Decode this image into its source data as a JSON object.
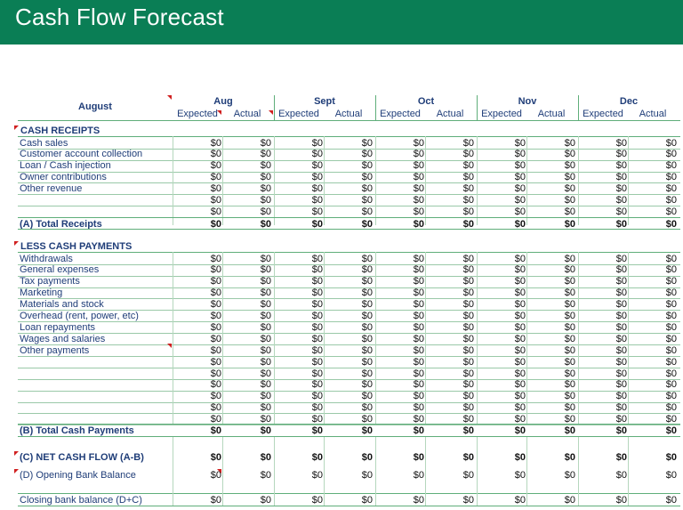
{
  "title": "Cash Flow Forecast",
  "header": {
    "period_label": "August",
    "months": [
      "Aug",
      "Sept",
      "Oct",
      "Nov",
      "Dec"
    ],
    "expected_label": "Expected",
    "actual_label": "Actual"
  },
  "receipts": {
    "section_title": "CASH RECEIPTS",
    "rows": [
      {
        "label": "Cash sales",
        "values": [
          "$0",
          "$0",
          "$0",
          "$0",
          "$0",
          "$0",
          "$0",
          "$0",
          "$0",
          "$0"
        ]
      },
      {
        "label": "Customer account collection",
        "values": [
          "$0",
          "$0",
          "$0",
          "$0",
          "$0",
          "$0",
          "$0",
          "$0",
          "$0",
          "$0"
        ]
      },
      {
        "label": "Loan / Cash injection",
        "values": [
          "$0",
          "$0",
          "$0",
          "$0",
          "$0",
          "$0",
          "$0",
          "$0",
          "$0",
          "$0"
        ]
      },
      {
        "label": "Owner contributions",
        "values": [
          "$0",
          "$0",
          "$0",
          "$0",
          "$0",
          "$0",
          "$0",
          "$0",
          "$0",
          "$0"
        ]
      },
      {
        "label": "Other revenue",
        "values": [
          "$0",
          "$0",
          "$0",
          "$0",
          "$0",
          "$0",
          "$0",
          "$0",
          "$0",
          "$0"
        ]
      },
      {
        "label": "",
        "values": [
          "$0",
          "$0",
          "$0",
          "$0",
          "$0",
          "$0",
          "$0",
          "$0",
          "$0",
          "$0"
        ]
      },
      {
        "label": "",
        "values": [
          "$0",
          "$0",
          "$0",
          "$0",
          "$0",
          "$0",
          "$0",
          "$0",
          "$0",
          "$0"
        ]
      }
    ],
    "total_label": "(A) Total Receipts",
    "total_values": [
      "$0",
      "$0",
      "$0",
      "$0",
      "$0",
      "$0",
      "$0",
      "$0",
      "$0",
      "$0"
    ]
  },
  "payments": {
    "section_title": "LESS CASH PAYMENTS",
    "rows": [
      {
        "label": "Withdrawals",
        "values": [
          "$0",
          "$0",
          "$0",
          "$0",
          "$0",
          "$0",
          "$0",
          "$0",
          "$0",
          "$0"
        ]
      },
      {
        "label": "General expenses",
        "values": [
          "$0",
          "$0",
          "$0",
          "$0",
          "$0",
          "$0",
          "$0",
          "$0",
          "$0",
          "$0"
        ]
      },
      {
        "label": "Tax payments",
        "values": [
          "$0",
          "$0",
          "$0",
          "$0",
          "$0",
          "$0",
          "$0",
          "$0",
          "$0",
          "$0"
        ]
      },
      {
        "label": "Marketing",
        "values": [
          "$0",
          "$0",
          "$0",
          "$0",
          "$0",
          "$0",
          "$0",
          "$0",
          "$0",
          "$0"
        ]
      },
      {
        "label": "Materials and stock",
        "values": [
          "$0",
          "$0",
          "$0",
          "$0",
          "$0",
          "$0",
          "$0",
          "$0",
          "$0",
          "$0"
        ]
      },
      {
        "label": "Overhead (rent, power, etc)",
        "values": [
          "$0",
          "$0",
          "$0",
          "$0",
          "$0",
          "$0",
          "$0",
          "$0",
          "$0",
          "$0"
        ]
      },
      {
        "label": "Loan repayments",
        "values": [
          "$0",
          "$0",
          "$0",
          "$0",
          "$0",
          "$0",
          "$0",
          "$0",
          "$0",
          "$0"
        ]
      },
      {
        "label": "Wages and salaries",
        "values": [
          "$0",
          "$0",
          "$0",
          "$0",
          "$0",
          "$0",
          "$0",
          "$0",
          "$0",
          "$0"
        ]
      },
      {
        "label": "Other payments",
        "values": [
          "$0",
          "$0",
          "$0",
          "$0",
          "$0",
          "$0",
          "$0",
          "$0",
          "$0",
          "$0"
        ]
      },
      {
        "label": "",
        "values": [
          "$0",
          "$0",
          "$0",
          "$0",
          "$0",
          "$0",
          "$0",
          "$0",
          "$0",
          "$0"
        ]
      },
      {
        "label": "",
        "values": [
          "$0",
          "$0",
          "$0",
          "$0",
          "$0",
          "$0",
          "$0",
          "$0",
          "$0",
          "$0"
        ]
      },
      {
        "label": "",
        "values": [
          "$0",
          "$0",
          "$0",
          "$0",
          "$0",
          "$0",
          "$0",
          "$0",
          "$0",
          "$0"
        ]
      },
      {
        "label": "",
        "values": [
          "$0",
          "$0",
          "$0",
          "$0",
          "$0",
          "$0",
          "$0",
          "$0",
          "$0",
          "$0"
        ]
      },
      {
        "label": "",
        "values": [
          "$0",
          "$0",
          "$0",
          "$0",
          "$0",
          "$0",
          "$0",
          "$0",
          "$0",
          "$0"
        ]
      },
      {
        "label": "",
        "values": [
          "$0",
          "$0",
          "$0",
          "$0",
          "$0",
          "$0",
          "$0",
          "$0",
          "$0",
          "$0"
        ]
      }
    ],
    "total_label": "(B) Total Cash Payments",
    "total_values": [
      "$0",
      "$0",
      "$0",
      "$0",
      "$0",
      "$0",
      "$0",
      "$0",
      "$0",
      "$0"
    ]
  },
  "net_cash_flow": {
    "label": "(C)  NET CASH FLOW (A-B)",
    "values": [
      "$0",
      "$0",
      "$0",
      "$0",
      "$0",
      "$0",
      "$0",
      "$0",
      "$0",
      "$0"
    ]
  },
  "opening_balance": {
    "label": "(D) Opening Bank Balance",
    "values": [
      "$0",
      "$0",
      "$0",
      "$0",
      "$0",
      "$0",
      "$0",
      "$0",
      "$0",
      "$0"
    ]
  },
  "closing_balance": {
    "label": "Closing bank balance (D+C)",
    "values": [
      "$0",
      "$0",
      "$0",
      "$0",
      "$0",
      "$0",
      "$0",
      "$0",
      "$0",
      "$0"
    ]
  },
  "colors": {
    "title_band": "#0a7e55",
    "label_text": "#1f3d78",
    "grid_line": "#5fae7a",
    "comment_marker": "#d01f1f"
  }
}
